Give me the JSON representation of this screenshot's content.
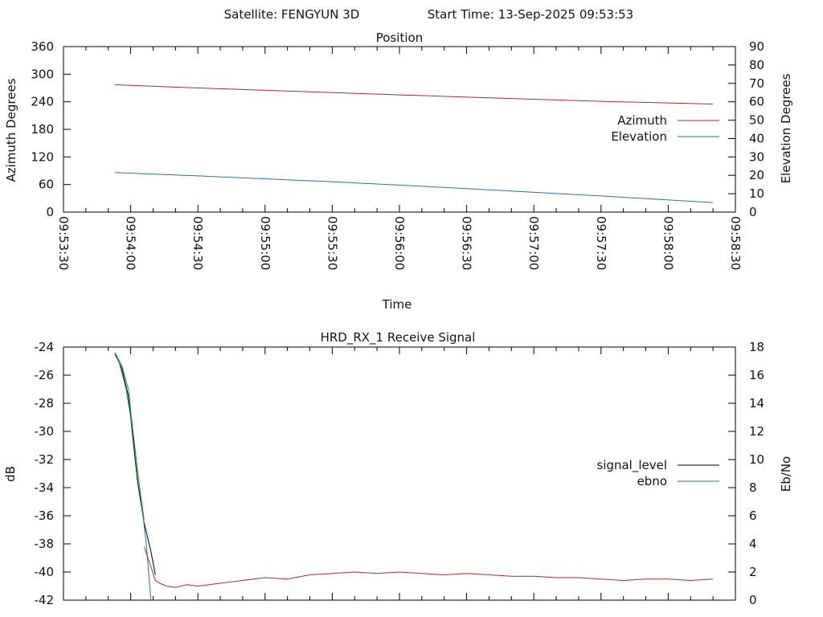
{
  "header": {
    "satellite": "Satellite: FENGYUN 3D",
    "start_time": "Start Time: 13-Sep-2025 09:53:53"
  },
  "chart_data": [
    {
      "type": "line",
      "title": "Position",
      "xlabel": "Time",
      "ylabel": "Azimuth Degrees",
      "y2label": "Elevation Degrees",
      "xticks": [
        "09:53:30",
        "09:54:00",
        "09:54:30",
        "09:55:00",
        "09:55:30",
        "09:56:00",
        "09:56:30",
        "09:57:00",
        "09:57:30",
        "09:58:00",
        "09:58:30"
      ],
      "xlim_seconds": [
        0,
        300
      ],
      "ylim": [
        0,
        360
      ],
      "yticks": [
        0,
        60,
        120,
        180,
        240,
        300,
        360
      ],
      "y2lim": [
        0,
        90
      ],
      "y2ticks": [
        0,
        10,
        20,
        30,
        40,
        50,
        60,
        70,
        80,
        90
      ],
      "legend_position": "right",
      "series": [
        {
          "name": "Azimuth",
          "axis": "y",
          "color": "#a0302a",
          "x_seconds": [
            23,
            60,
            120,
            180,
            240,
            290
          ],
          "values": [
            277,
            270,
            260,
            250,
            241,
            235
          ]
        },
        {
          "name": "Elevation",
          "axis": "y2",
          "color": "#2a6f96",
          "x_seconds": [
            23,
            60,
            120,
            180,
            240,
            290
          ],
          "values": [
            21.5,
            19.7,
            16.5,
            12.8,
            8.8,
            5.2
          ]
        }
      ]
    },
    {
      "type": "line",
      "title": "HRD_RX_1 Receive Signal",
      "ylabel": "dB",
      "y2label": "Eb/No",
      "ylim": [
        -42,
        -24
      ],
      "yticks": [
        -42,
        -40,
        -38,
        -36,
        -34,
        -32,
        -30,
        -28,
        -26,
        -24
      ],
      "y2lim": [
        0,
        18
      ],
      "y2ticks": [
        0,
        2,
        4,
        6,
        8,
        10,
        12,
        14,
        16,
        18
      ],
      "xlim_seconds": [
        0,
        300
      ],
      "legend_position": "right",
      "series": [
        {
          "name": "signal_level",
          "axis": "y",
          "color": "#000000",
          "x_seconds": [
            23,
            26,
            29,
            31,
            33,
            36,
            39,
            41
          ],
          "values": [
            -24.5,
            -25.5,
            -27.5,
            -30.5,
            -33.5,
            -36.5,
            -38.5,
            -40.2
          ]
        },
        {
          "name": "ebno",
          "axis": "y2",
          "color": "#2a6f96",
          "x_seconds": [
            23,
            25,
            28,
            31,
            34,
            37,
            39
          ],
          "values": [
            17.6,
            16.8,
            15.0,
            12.0,
            8.0,
            4.0,
            0.0
          ]
        },
        {
          "name": "",
          "color": "#1a9a1a",
          "x_seconds": [
            23,
            26,
            29,
            31,
            34,
            36
          ],
          "values": [
            -24.4,
            -25.3,
            -27.0,
            -30.0,
            -34.0,
            -36.3
          ]
        },
        {
          "name": "",
          "color": "#a0302a",
          "x_seconds": [
            36,
            39,
            41,
            43,
            46,
            50,
            55,
            60,
            70,
            80,
            90,
            100,
            110,
            120,
            130,
            140,
            150,
            160,
            170,
            180,
            190,
            200,
            210,
            220,
            230,
            240,
            250,
            260,
            270,
            280,
            290
          ],
          "values": [
            -38.2,
            -39.6,
            -40.6,
            -40.8,
            -41.0,
            -41.1,
            -40.9,
            -41.0,
            -40.8,
            -40.6,
            -40.4,
            -40.5,
            -40.2,
            -40.1,
            -40.0,
            -40.1,
            -40.0,
            -40.1,
            -40.2,
            -40.1,
            -40.2,
            -40.3,
            -40.3,
            -40.4,
            -40.4,
            -40.5,
            -40.6,
            -40.5,
            -40.5,
            -40.6,
            -40.5
          ]
        }
      ]
    }
  ]
}
